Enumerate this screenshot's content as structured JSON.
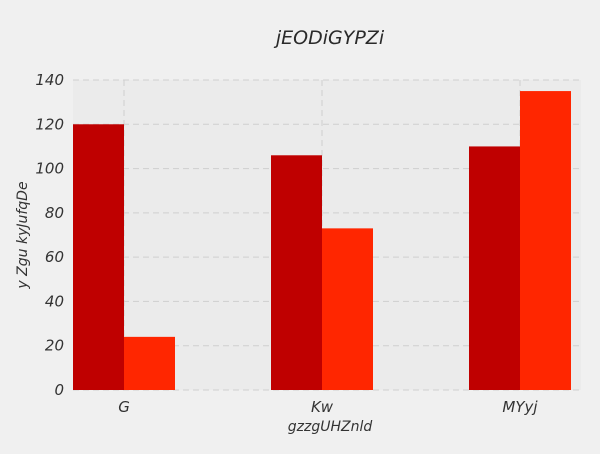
{
  "chart_data": {
    "type": "bar",
    "title": "jEODiGYPZi",
    "xlabel": "gzzgUHZnld",
    "ylabel": "y Zgu kyJufqDe",
    "categories": [
      "G",
      "Kw",
      "MYyj"
    ],
    "series": [
      {
        "values": [
          120,
          106,
          110
        ],
        "color": "#bf0000"
      },
      {
        "values": [
          24,
          73,
          135
        ],
        "color": "#ff2600"
      }
    ],
    "ylim": [
      0,
      140
    ],
    "yticks": [
      0,
      20,
      40,
      60,
      80,
      100,
      120,
      140
    ],
    "grid": true,
    "background": "#ebebeb",
    "page_background": "#f0f0f0"
  }
}
